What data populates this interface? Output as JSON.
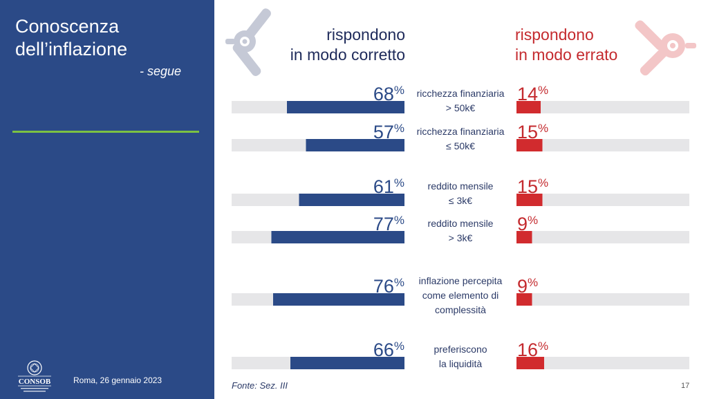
{
  "sidebar": {
    "title_line1": "Conoscenza",
    "title_line2": "dell’inflazione",
    "subtitle": "- segue",
    "date": "Roma, 26 gennaio 2023",
    "logo_text": "CONSOB"
  },
  "headers": {
    "correct_line1": "rispondono",
    "correct_line2": "in modo corretto",
    "wrong_line1": "rispondono",
    "wrong_line2": "in modo errato"
  },
  "footer": {
    "source": "Fonte: Sez. III",
    "page": "17"
  },
  "colors": {
    "sidebar": "#2b4a87",
    "correct_bar": "#2b4a87",
    "correct_text": "#2b4a87",
    "wrong_bar": "#d12b2e",
    "wrong_text": "#c42a2e",
    "track": "#e6e6e8",
    "accent_line": "#7cc242"
  },
  "chart_data": {
    "type": "bar",
    "unit": "%",
    "categories": [
      [
        "ricchezza finanziaria",
        "> 50k€"
      ],
      [
        "ricchezza finanziaria",
        "≤ 50k€"
      ],
      [
        "reddito mensile",
        "≤ 3k€"
      ],
      [
        "reddito mensile",
        "> 3k€"
      ],
      [
        "inflazione percepita",
        "come elemento di",
        "complessità"
      ],
      [
        "preferiscono",
        "la liquidità"
      ]
    ],
    "series": [
      {
        "name": "rispondono in modo corretto",
        "values": [
          68,
          57,
          61,
          77,
          76,
          66
        ]
      },
      {
        "name": "rispondono in modo errato",
        "values": [
          14,
          15,
          15,
          9,
          9,
          16
        ]
      }
    ],
    "ylim": [
      0,
      100
    ]
  }
}
